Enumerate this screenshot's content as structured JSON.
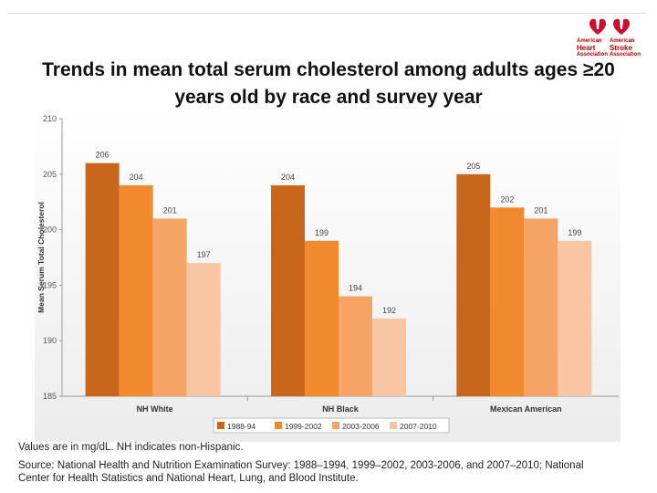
{
  "logo": {
    "left": [
      "American",
      "Heart",
      "Association"
    ],
    "right": [
      "American",
      "Stroke",
      "Association"
    ],
    "colors": {
      "red": "#c8102e"
    }
  },
  "slide": {
    "title_line1": "Trends in mean total serum cholesterol among adults ages ≥20",
    "title_line2": "years old by race and survey year",
    "note": "Values are in mg/dL. NH indicates non-Hispanic.",
    "source": "Source: National Health and Nutrition Examination Survey: 1988–1994, 1999–2002, 2003-2006, and 2007–2010; National Center for Health Statistics and National Heart, Lung, and Blood Institute."
  },
  "chart_data": {
    "type": "bar",
    "title": "Trends in mean total serum cholesterol among adults ages ≥20 years old by race and survey year",
    "ylabel": "Mean Serum Total Cholesterol",
    "xlabel": "",
    "ylim": [
      185,
      210
    ],
    "yticks": [
      185,
      190,
      195,
      200,
      205,
      210
    ],
    "categories": [
      "NH White",
      "NH Black",
      "Mexican American"
    ],
    "series": [
      {
        "name": "1988-94",
        "values": [
          206,
          204,
          205
        ],
        "color": "#c8661c"
      },
      {
        "name": "1999-2002",
        "values": [
          204,
          199,
          202
        ],
        "color": "#f18a2e"
      },
      {
        "name": "2003-2006",
        "values": [
          201,
          194,
          201
        ],
        "color": "#f6a466"
      },
      {
        "name": "2007-2010",
        "values": [
          197,
          192,
          199
        ],
        "color": "#f9c6a4"
      }
    ],
    "legend_position": "bottom"
  }
}
